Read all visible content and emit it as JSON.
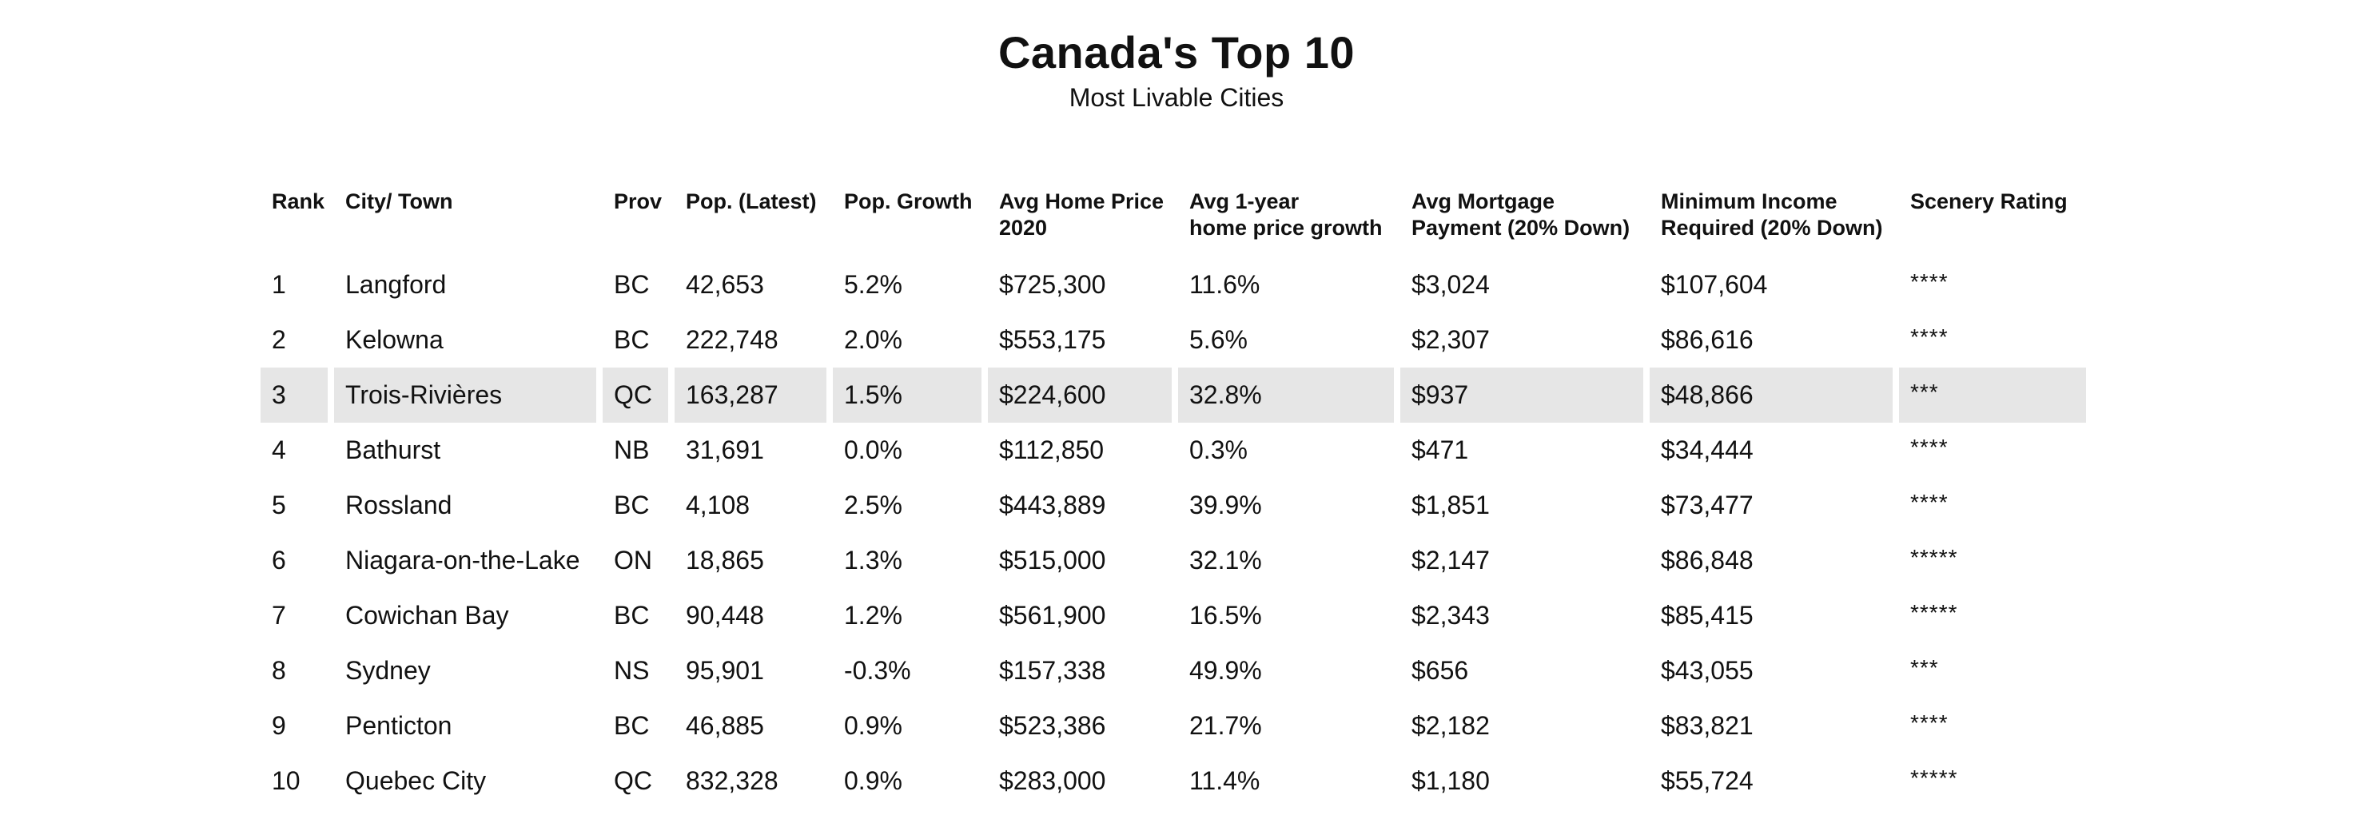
{
  "chart_data": {
    "type": "table",
    "title": "Canada's Top 10",
    "subtitle": "Most Livable Cities",
    "highlight_row": 2,
    "highlight_color": "#e6e6e6",
    "columns": [
      [
        "Rank"
      ],
      [
        "City/ Town"
      ],
      [
        "Prov"
      ],
      [
        "Pop. (Latest)"
      ],
      [
        "Pop. Growth"
      ],
      [
        "Avg Home Price",
        "2020"
      ],
      [
        "Avg 1-year",
        "home price growth"
      ],
      [
        "Avg Mortgage",
        "Payment (20% Down)"
      ],
      [
        "Minimum Income",
        "Required (20% Down)"
      ],
      [
        "Scenery Rating"
      ]
    ],
    "rows": [
      [
        "1",
        "Langford",
        "BC",
        "42,653",
        "5.2%",
        "$725,300",
        "11.6%",
        "$3,024",
        "$107,604",
        "****"
      ],
      [
        "2",
        "Kelowna",
        "BC",
        "222,748",
        "2.0%",
        "$553,175",
        "5.6%",
        "$2,307",
        "$86,616",
        "****"
      ],
      [
        "3",
        "Trois-Rivières",
        "QC",
        "163,287",
        "1.5%",
        "$224,600",
        "32.8%",
        "$937",
        "$48,866",
        "***"
      ],
      [
        "4",
        "Bathurst",
        "NB",
        "31,691",
        "0.0%",
        "$112,850",
        "0.3%",
        "$471",
        "$34,444",
        "****"
      ],
      [
        "5",
        "Rossland",
        "BC",
        "4,108",
        "2.5%",
        "$443,889",
        "39.9%",
        "$1,851",
        "$73,477",
        "****"
      ],
      [
        "6",
        "Niagara-on-the-Lake",
        "ON",
        "18,865",
        "1.3%",
        "$515,000",
        "32.1%",
        "$2,147",
        "$86,848",
        "*****"
      ],
      [
        "7",
        "Cowichan Bay",
        "BC",
        "90,448",
        "1.2%",
        "$561,900",
        "16.5%",
        "$2,343",
        "$85,415",
        "*****"
      ],
      [
        "8",
        "Sydney",
        "NS",
        "95,901",
        "-0.3%",
        "$157,338",
        "49.9%",
        "$656",
        "$43,055",
        "***"
      ],
      [
        "9",
        "Penticton",
        "BC",
        "46,885",
        "0.9%",
        "$523,386",
        "21.7%",
        "$2,182",
        "$83,821",
        "****"
      ],
      [
        "10",
        "Quebec City",
        "QC",
        "832,328",
        "0.9%",
        "$283,000",
        "11.4%",
        "$1,180",
        "$55,724",
        "*****"
      ]
    ]
  }
}
